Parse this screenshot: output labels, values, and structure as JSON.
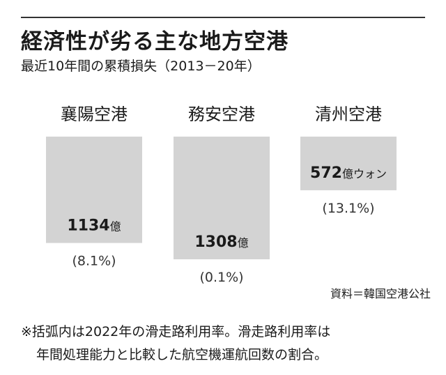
{
  "header": {
    "title": "経済性が劣る主な地方空港",
    "subtitle": "最近10年間の累積損失（2013－20年）"
  },
  "chart_data": {
    "type": "bar",
    "orientation": "downward",
    "title": "経済性が劣る主な地方空港",
    "subtitle": "最近10年間の累積損失（2013－20年）",
    "unit": "億ウォン",
    "categories": [
      "襄陽空港",
      "務安空港",
      "清州空港"
    ],
    "values": [
      1134,
      1308,
      572
    ],
    "value_labels": [
      {
        "number": "1134",
        "unit": "億"
      },
      {
        "number": "1308",
        "unit": "億"
      },
      {
        "number": "572",
        "unit": "億ウォン"
      }
    ],
    "runway_utilization_labels": [
      "(8.1%)",
      "(0.1%)",
      "(13.1%)"
    ],
    "runway_utilization_pct": [
      8.1,
      0.1,
      13.1
    ],
    "ylim": [
      0,
      1308
    ],
    "grid": false,
    "legend": "none",
    "bar_color": "#d3d3d3"
  },
  "footer": {
    "source": "資料＝韓国空港公社",
    "note_line1": "※括弧内は2022年の滑走路利用率。滑走路利用率は",
    "note_line2": "年間処理能力と比較した航空機運航回数の割合。"
  }
}
